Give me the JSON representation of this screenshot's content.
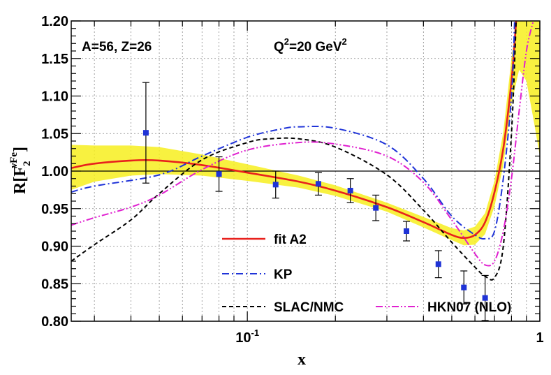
{
  "chart_data": {
    "type": "line",
    "xscale": "log",
    "xlim": [
      0.025,
      1.0
    ],
    "ylim": [
      0.8,
      1.2
    ],
    "grid": true,
    "xlabel": "x",
    "ylabel": {
      "main": "R[F",
      "sub": "2",
      "sup": "νFe",
      "close": "]"
    },
    "yticks": [
      {
        "value": 0.8,
        "label": "0.80"
      },
      {
        "value": 0.85,
        "label": "0.85"
      },
      {
        "value": 0.9,
        "label": "0.90"
      },
      {
        "value": 0.95,
        "label": "0.95"
      },
      {
        "value": 1.0,
        "label": "1.00"
      },
      {
        "value": 1.05,
        "label": "1.05"
      },
      {
        "value": 1.1,
        "label": "1.10"
      },
      {
        "value": 1.15,
        "label": "1.15"
      },
      {
        "value": 1.2,
        "label": "1.20"
      }
    ],
    "xticks": [
      {
        "value": 0.1,
        "base": "10",
        "exp": "-1"
      },
      {
        "value": 1.0,
        "base": "1",
        "exp": ""
      }
    ],
    "annotations": {
      "nucleus": "A=56, Z=26",
      "q2": {
        "prefix": "Q",
        "sup1": "2",
        "mid": "=20 GeV",
        "sup2": "2"
      }
    },
    "reference_line": 1.0,
    "band": {
      "name": "fit A2 uncertainty",
      "color": "#f7ef1e",
      "points": [
        [
          0.025,
          1.005,
          0.03
        ],
        [
          0.03,
          1.01,
          0.024
        ],
        [
          0.04,
          1.014,
          0.02
        ],
        [
          0.05,
          1.014,
          0.018
        ],
        [
          0.07,
          1.008,
          0.014
        ],
        [
          0.1,
          0.998,
          0.011
        ],
        [
          0.15,
          0.986,
          0.008
        ],
        [
          0.2,
          0.974,
          0.007
        ],
        [
          0.3,
          0.952,
          0.006
        ],
        [
          0.4,
          0.932,
          0.007
        ],
        [
          0.5,
          0.916,
          0.008
        ],
        [
          0.55,
          0.911,
          0.01
        ],
        [
          0.6,
          0.914,
          0.012
        ],
        [
          0.65,
          0.93,
          0.014
        ],
        [
          0.7,
          0.97,
          0.017
        ],
        [
          0.75,
          1.03,
          0.022
        ],
        [
          0.8,
          1.12,
          0.03
        ],
        [
          0.85,
          1.18,
          0.045
        ],
        [
          0.9,
          1.2,
          0.08
        ],
        [
          0.95,
          1.17,
          0.1
        ],
        [
          1.0,
          1.14,
          0.12
        ]
      ]
    },
    "series": [
      {
        "name": "fit A2",
        "label": "fit A2",
        "color": "#e8211d",
        "dash": "",
        "width": 2.6,
        "points": [
          [
            0.025,
            1.004
          ],
          [
            0.03,
            1.01
          ],
          [
            0.04,
            1.014
          ],
          [
            0.05,
            1.014
          ],
          [
            0.07,
            1.008
          ],
          [
            0.1,
            0.998
          ],
          [
            0.15,
            0.986
          ],
          [
            0.2,
            0.974
          ],
          [
            0.3,
            0.952
          ],
          [
            0.4,
            0.932
          ],
          [
            0.5,
            0.915
          ],
          [
            0.55,
            0.911
          ],
          [
            0.6,
            0.915
          ],
          [
            0.65,
            0.932
          ],
          [
            0.7,
            0.972
          ],
          [
            0.75,
            1.03
          ],
          [
            0.8,
            1.12
          ],
          [
            0.83,
            1.2
          ]
        ]
      },
      {
        "name": "KP",
        "label": "KP",
        "color": "#2034d8",
        "dash": "10,4,2,4",
        "width": 2,
        "points": [
          [
            0.025,
            0.972
          ],
          [
            0.03,
            0.98
          ],
          [
            0.05,
            0.995
          ],
          [
            0.07,
            1.02
          ],
          [
            0.1,
            1.045
          ],
          [
            0.13,
            1.056
          ],
          [
            0.15,
            1.059
          ],
          [
            0.2,
            1.057
          ],
          [
            0.3,
            1.035
          ],
          [
            0.4,
            0.99
          ],
          [
            0.5,
            0.94
          ],
          [
            0.6,
            0.915
          ],
          [
            0.65,
            0.91
          ],
          [
            0.7,
            0.92
          ],
          [
            0.75,
            0.99
          ],
          [
            0.8,
            1.1
          ],
          [
            0.82,
            1.2
          ]
        ]
      },
      {
        "name": "SLAC/NMC",
        "label": "SLAC/NMC",
        "color": "#000000",
        "dash": "6,4",
        "width": 2,
        "points": [
          [
            0.025,
            0.88
          ],
          [
            0.03,
            0.902
          ],
          [
            0.04,
            0.935
          ],
          [
            0.05,
            0.97
          ],
          [
            0.07,
            1.015
          ],
          [
            0.1,
            1.038
          ],
          [
            0.12,
            1.043
          ],
          [
            0.15,
            1.043
          ],
          [
            0.2,
            1.032
          ],
          [
            0.3,
            0.995
          ],
          [
            0.4,
            0.948
          ],
          [
            0.5,
            0.905
          ],
          [
            0.6,
            0.872
          ],
          [
            0.65,
            0.86
          ],
          [
            0.7,
            0.858
          ],
          [
            0.75,
            0.9
          ],
          [
            0.8,
            1.05
          ],
          [
            0.83,
            1.2
          ]
        ]
      },
      {
        "name": "HKN07 (NLO)",
        "label": "HKN07 (NLO)",
        "color": "#e020d0",
        "dash": "10,3,2,3,2,3",
        "width": 2,
        "points": [
          [
            0.025,
            0.928
          ],
          [
            0.03,
            0.938
          ],
          [
            0.04,
            0.952
          ],
          [
            0.05,
            0.968
          ],
          [
            0.07,
            1.002
          ],
          [
            0.1,
            1.028
          ],
          [
            0.15,
            1.038
          ],
          [
            0.2,
            1.036
          ],
          [
            0.3,
            1.02
          ],
          [
            0.4,
            0.985
          ],
          [
            0.5,
            0.935
          ],
          [
            0.6,
            0.89
          ],
          [
            0.65,
            0.875
          ],
          [
            0.7,
            0.88
          ],
          [
            0.75,
            0.92
          ],
          [
            0.8,
            0.99
          ],
          [
            0.85,
            1.08
          ],
          [
            0.9,
            1.16
          ],
          [
            0.95,
            1.2
          ]
        ]
      }
    ],
    "data_points": {
      "name": "data",
      "color": "#1f33d6",
      "points": [
        {
          "x": 0.045,
          "y": 1.051,
          "err": 0.067
        },
        {
          "x": 0.08,
          "y": 0.996,
          "err": 0.023
        },
        {
          "x": 0.125,
          "y": 0.982,
          "err": 0.018
        },
        {
          "x": 0.175,
          "y": 0.983,
          "err": 0.015
        },
        {
          "x": 0.225,
          "y": 0.974,
          "err": 0.016
        },
        {
          "x": 0.275,
          "y": 0.951,
          "err": 0.017
        },
        {
          "x": 0.35,
          "y": 0.92,
          "err": 0.013
        },
        {
          "x": 0.45,
          "y": 0.876,
          "err": 0.018
        },
        {
          "x": 0.55,
          "y": 0.845,
          "err": 0.022
        },
        {
          "x": 0.65,
          "y": 0.831,
          "err": 0.03
        }
      ]
    }
  }
}
